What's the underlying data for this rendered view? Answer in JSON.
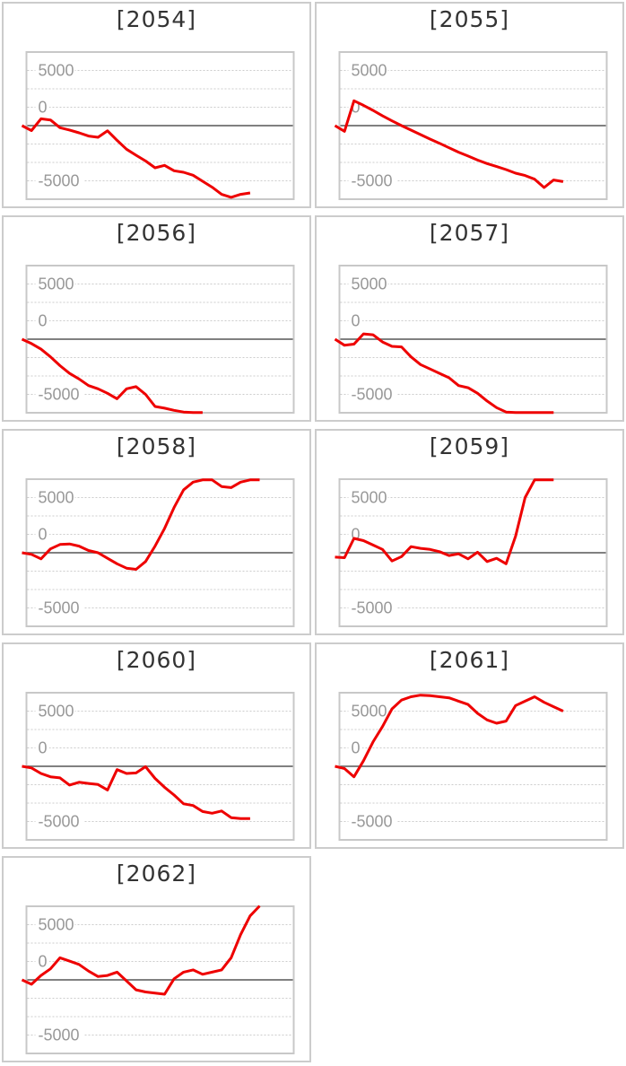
{
  "page": {
    "background": "#ffffff",
    "description": "grid of machine slump graphs"
  },
  "grid": {
    "columns": 2,
    "rows": 5,
    "card_count": 9
  },
  "axis": {
    "tick_labels": [
      "5000",
      "0",
      "-5000"
    ],
    "tick_values": [
      5000,
      0,
      -5000
    ],
    "label_color": "#999999",
    "gridline_color": "#cccccc",
    "zero_line_color": "#808080",
    "plot_border_color": "#c8c8c8"
  },
  "style": {
    "line_color": "#ee0000",
    "card_border_color": "#cccccc",
    "title_color": "#333333",
    "card_background": "#ffffff"
  },
  "chart_data": [
    {
      "type": "line",
      "title": "[2054]",
      "machine_id": "2054",
      "x_unit": "day_index",
      "yticks": [
        5000,
        0,
        -5000
      ],
      "ylim": [
        -6700,
        6700
      ],
      "grid": "dotted-horizontal",
      "legend": "none",
      "values": [
        0,
        -450,
        620,
        510,
        -190,
        -400,
        -650,
        -940,
        -1060,
        -470,
        -1330,
        -2140,
        -2680,
        -3200,
        -3820,
        -3600,
        -4090,
        -4230,
        -4500,
        -5040,
        -5580,
        -6230,
        -6500,
        -6230,
        -6100
      ]
    },
    {
      "type": "line",
      "title": "[2055]",
      "machine_id": "2055",
      "x_unit": "day_index",
      "yticks": [
        5000,
        0,
        -5000
      ],
      "ylim": [
        -6700,
        6700
      ],
      "grid": "dotted-horizontal",
      "legend": "none",
      "values": [
        0,
        -520,
        2250,
        1840,
        1380,
        890,
        430,
        0,
        -410,
        -810,
        -1220,
        -1600,
        -2010,
        -2410,
        -2760,
        -3120,
        -3440,
        -3710,
        -3980,
        -4310,
        -4520,
        -4850,
        -5610,
        -4930,
        -5070
      ]
    },
    {
      "type": "line",
      "title": "[2056]",
      "machine_id": "2056",
      "x_unit": "day_index",
      "yticks": [
        5000,
        0,
        -5000
      ],
      "ylim": [
        -6700,
        6700
      ],
      "grid": "dotted-horizontal",
      "legend": "none",
      "values": [
        0,
        -400,
        -900,
        -1600,
        -2400,
        -3100,
        -3600,
        -4200,
        -4500,
        -4900,
        -5400,
        -4500,
        -4300,
        -5000,
        -6100,
        -6250,
        -6450,
        -6600,
        -6650,
        -6650
      ]
    },
    {
      "type": "line",
      "title": "[2057]",
      "machine_id": "2057",
      "x_unit": "day_index",
      "yticks": [
        5000,
        0,
        -5000
      ],
      "ylim": [
        -6700,
        6700
      ],
      "grid": "dotted-horizontal",
      "legend": "none",
      "values": [
        0,
        -550,
        -450,
        480,
        400,
        -250,
        -650,
        -700,
        -1600,
        -2300,
        -2700,
        -3100,
        -3500,
        -4200,
        -4400,
        -4900,
        -5600,
        -6200,
        -6600,
        -6650,
        -6650,
        -6650,
        -6650,
        -6650
      ]
    },
    {
      "type": "line",
      "title": "[2058]",
      "machine_id": "2058",
      "x_unit": "day_index",
      "yticks": [
        5000,
        0,
        -5000
      ],
      "ylim": [
        -6700,
        6700
      ],
      "grid": "dotted-horizontal",
      "legend": "none",
      "values": [
        0,
        -150,
        -550,
        350,
        750,
        800,
        600,
        200,
        0,
        -500,
        -1000,
        -1400,
        -1500,
        -800,
        600,
        2200,
        4100,
        5700,
        6400,
        6600,
        6600,
        6000,
        5900,
        6400,
        6600,
        6600
      ]
    },
    {
      "type": "line",
      "title": "[2059]",
      "machine_id": "2059",
      "x_unit": "day_index",
      "yticks": [
        5000,
        0,
        -5000
      ],
      "ylim": [
        -6700,
        6700
      ],
      "grid": "dotted-horizontal",
      "legend": "none",
      "values": [
        -400,
        -450,
        1300,
        1100,
        700,
        300,
        -750,
        -350,
        550,
        400,
        300,
        100,
        -250,
        -100,
        -550,
        50,
        -800,
        -500,
        -1000,
        1500,
        5000,
        6600,
        6600,
        6600
      ]
    },
    {
      "type": "line",
      "title": "[2060]",
      "machine_id": "2060",
      "x_unit": "day_index",
      "yticks": [
        5000,
        0,
        -5000
      ],
      "ylim": [
        -6700,
        6700
      ],
      "grid": "dotted-horizontal",
      "legend": "none",
      "values": [
        0,
        -150,
        -650,
        -950,
        -1050,
        -1700,
        -1450,
        -1550,
        -1650,
        -2150,
        -300,
        -650,
        -600,
        -30,
        -1100,
        -1900,
        -2600,
        -3400,
        -3550,
        -4100,
        -4250,
        -4050,
        -4650,
        -4740,
        -4740
      ]
    },
    {
      "type": "line",
      "title": "[2061]",
      "machine_id": "2061",
      "x_unit": "day_index",
      "yticks": [
        5000,
        0,
        -5000
      ],
      "ylim": [
        -6700,
        6700
      ],
      "grid": "dotted-horizontal",
      "legend": "none",
      "values": [
        0,
        -200,
        -950,
        500,
        2200,
        3600,
        5200,
        6000,
        6300,
        6450,
        6400,
        6300,
        6200,
        5900,
        5600,
        4800,
        4200,
        3900,
        4100,
        5500,
        5900,
        6300,
        5800,
        5400,
        5000
      ]
    },
    {
      "type": "line",
      "title": "[2062]",
      "machine_id": "2062",
      "x_unit": "day_index",
      "yticks": [
        5000,
        0,
        -5000
      ],
      "ylim": [
        -6700,
        6700
      ],
      "grid": "dotted-horizontal",
      "legend": "none",
      "values": [
        0,
        -400,
        400,
        1000,
        2000,
        1700,
        1400,
        800,
        300,
        400,
        700,
        -100,
        -900,
        -1100,
        -1200,
        -1300,
        100,
        700,
        900,
        500,
        700,
        900,
        2000,
        4100,
        5800,
        6700
      ]
    }
  ]
}
